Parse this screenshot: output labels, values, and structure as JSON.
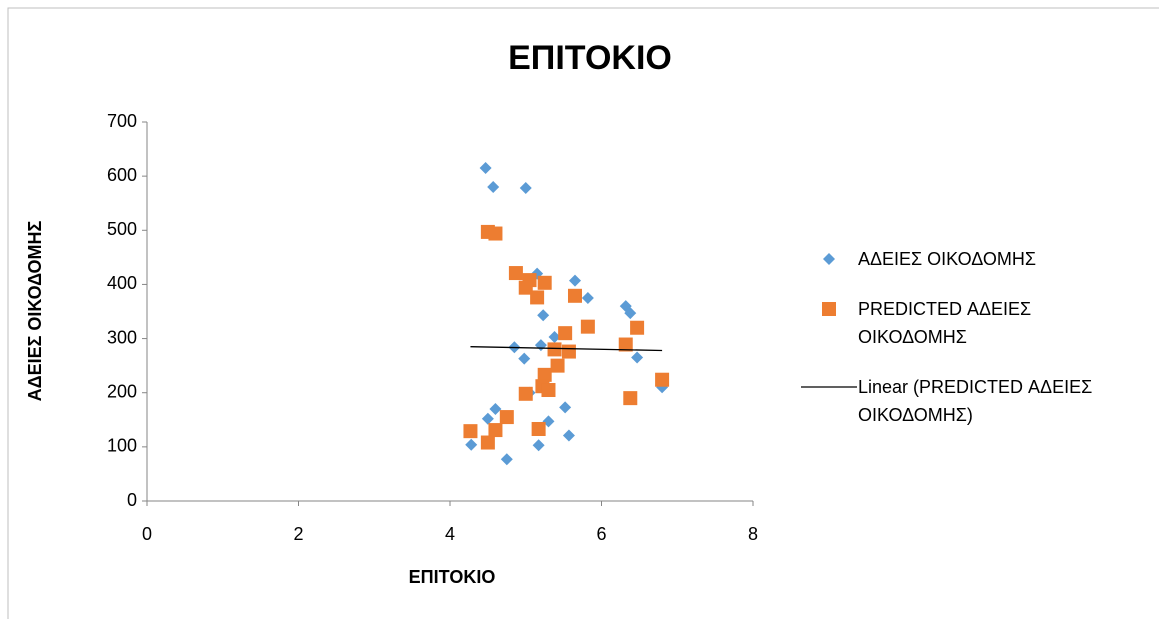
{
  "chart_data": {
    "type": "scatter",
    "title": "ΕΠΙΤΟΚΙΟ",
    "x_label": "ΕΠΙΤΟΚΙΟ",
    "y_label": "ΑΔΕΙΕΣ ΟΙΚΟΔΟΜΗΣ",
    "xlim": [
      0,
      8
    ],
    "xticks": [
      0,
      2,
      4,
      6,
      8
    ],
    "ylim": [
      0,
      700
    ],
    "yticks": [
      0,
      100,
      200,
      300,
      400,
      500,
      600,
      700
    ],
    "legend": "right",
    "series": [
      {
        "name": "ΑΔΕΙΕΣ ΟΙΚΟΔΟΜΗΣ",
        "color": "#5b9bd5",
        "marker": "diamond",
        "x": [
          4.47,
          4.57,
          5.0,
          5.15,
          5.65,
          5.82,
          6.32,
          6.38,
          5.23,
          5.38,
          5.2,
          4.85,
          4.98,
          6.47,
          6.8,
          5.05,
          4.6,
          4.5,
          5.52,
          5.3,
          4.28,
          5.17,
          5.57,
          4.75
        ],
        "values": [
          615,
          580,
          578,
          420,
          407,
          375,
          360,
          347,
          343,
          303,
          288,
          284,
          263,
          265,
          210,
          200,
          170,
          152,
          173,
          147,
          104,
          103,
          121,
          77
        ]
      },
      {
        "name": "PREDICTED ΑΔΕΙΕΣ ΟΙΚΟΔΟΜΗΣ",
        "color": "#ed7d31",
        "marker": "square",
        "x": [
          4.5,
          4.6,
          4.87,
          5.05,
          5.25,
          5.0,
          5.15,
          5.65,
          5.82,
          6.47,
          5.52,
          5.38,
          5.57,
          6.32,
          5.42,
          5.25,
          5.22,
          5.3,
          5.0,
          6.8,
          6.38,
          4.75,
          4.27,
          4.6,
          5.17,
          4.5
        ],
        "values": [
          497,
          494,
          421,
          408,
          403,
          394,
          376,
          379,
          322,
          320,
          310,
          280,
          276,
          289,
          250,
          233,
          212,
          205,
          198,
          224,
          190,
          155,
          129,
          131,
          133,
          108
        ]
      },
      {
        "name": "Linear (PREDICTED ΑΔΕΙΕΣ ΟΙΚΟΔΟΜΗΣ)",
        "color": "#000000",
        "marker": "line",
        "x": [
          4.27,
          6.8
        ],
        "values": [
          285,
          278
        ]
      }
    ]
  }
}
